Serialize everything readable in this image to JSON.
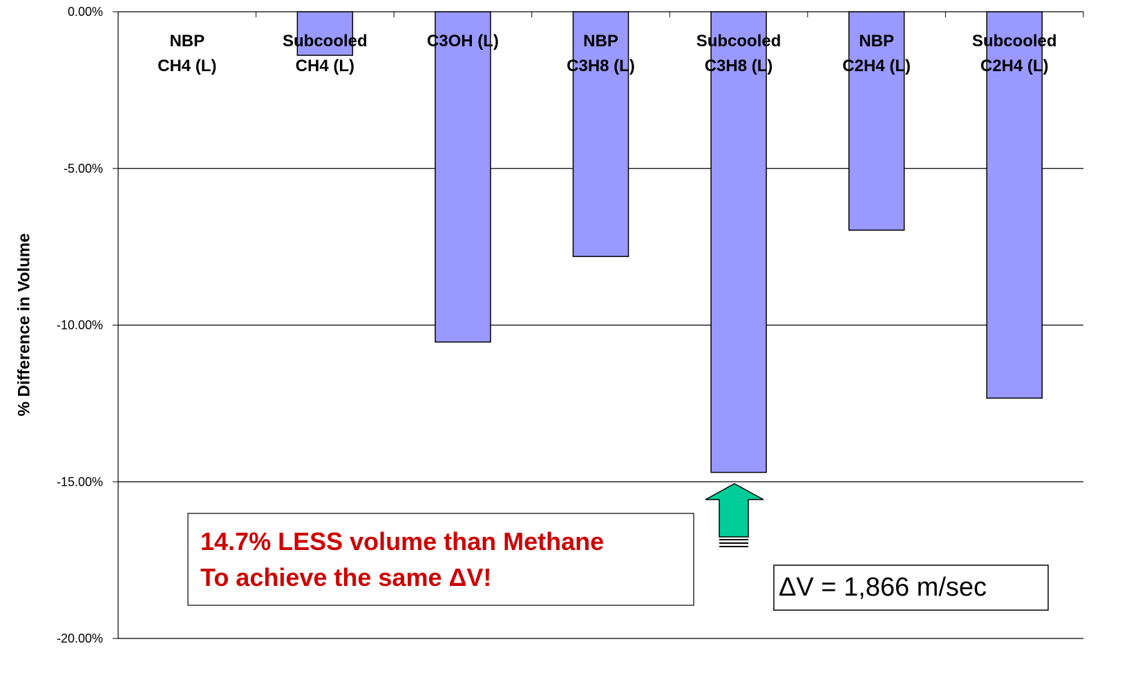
{
  "chart_data": {
    "type": "bar",
    "y_axis_label": "% Difference in Volume",
    "categories": [
      "NBP\nCH4 (L)",
      "Subcooled\nCH4 (L)",
      "C3OH (L)",
      "NBP\nC3H8 (L)",
      "Subcooled\nC3H8 (L)",
      "NBP\nC2H4 (L)",
      "Subcooled\nC2H4 (L)"
    ],
    "values": [
      0,
      -1.39,
      -10.54,
      -7.81,
      -14.7,
      -6.97,
      -12.33
    ],
    "color": "#9999ff",
    "ylim": [
      -20,
      0
    ],
    "yticks": [
      {
        "value": 0,
        "label": "0.00%"
      },
      {
        "value": -5,
        "label": "-5.00%"
      },
      {
        "value": -10,
        "label": "-10.00%"
      },
      {
        "value": -15,
        "label": "-15.00%"
      },
      {
        "value": -20,
        "label": "-20.00%"
      }
    ],
    "grid": true,
    "annotations": [
      "14.7% LESS volume than Methane\nTo achieve the same ΔV!",
      "ΔV = 1,866 m/sec"
    ]
  }
}
